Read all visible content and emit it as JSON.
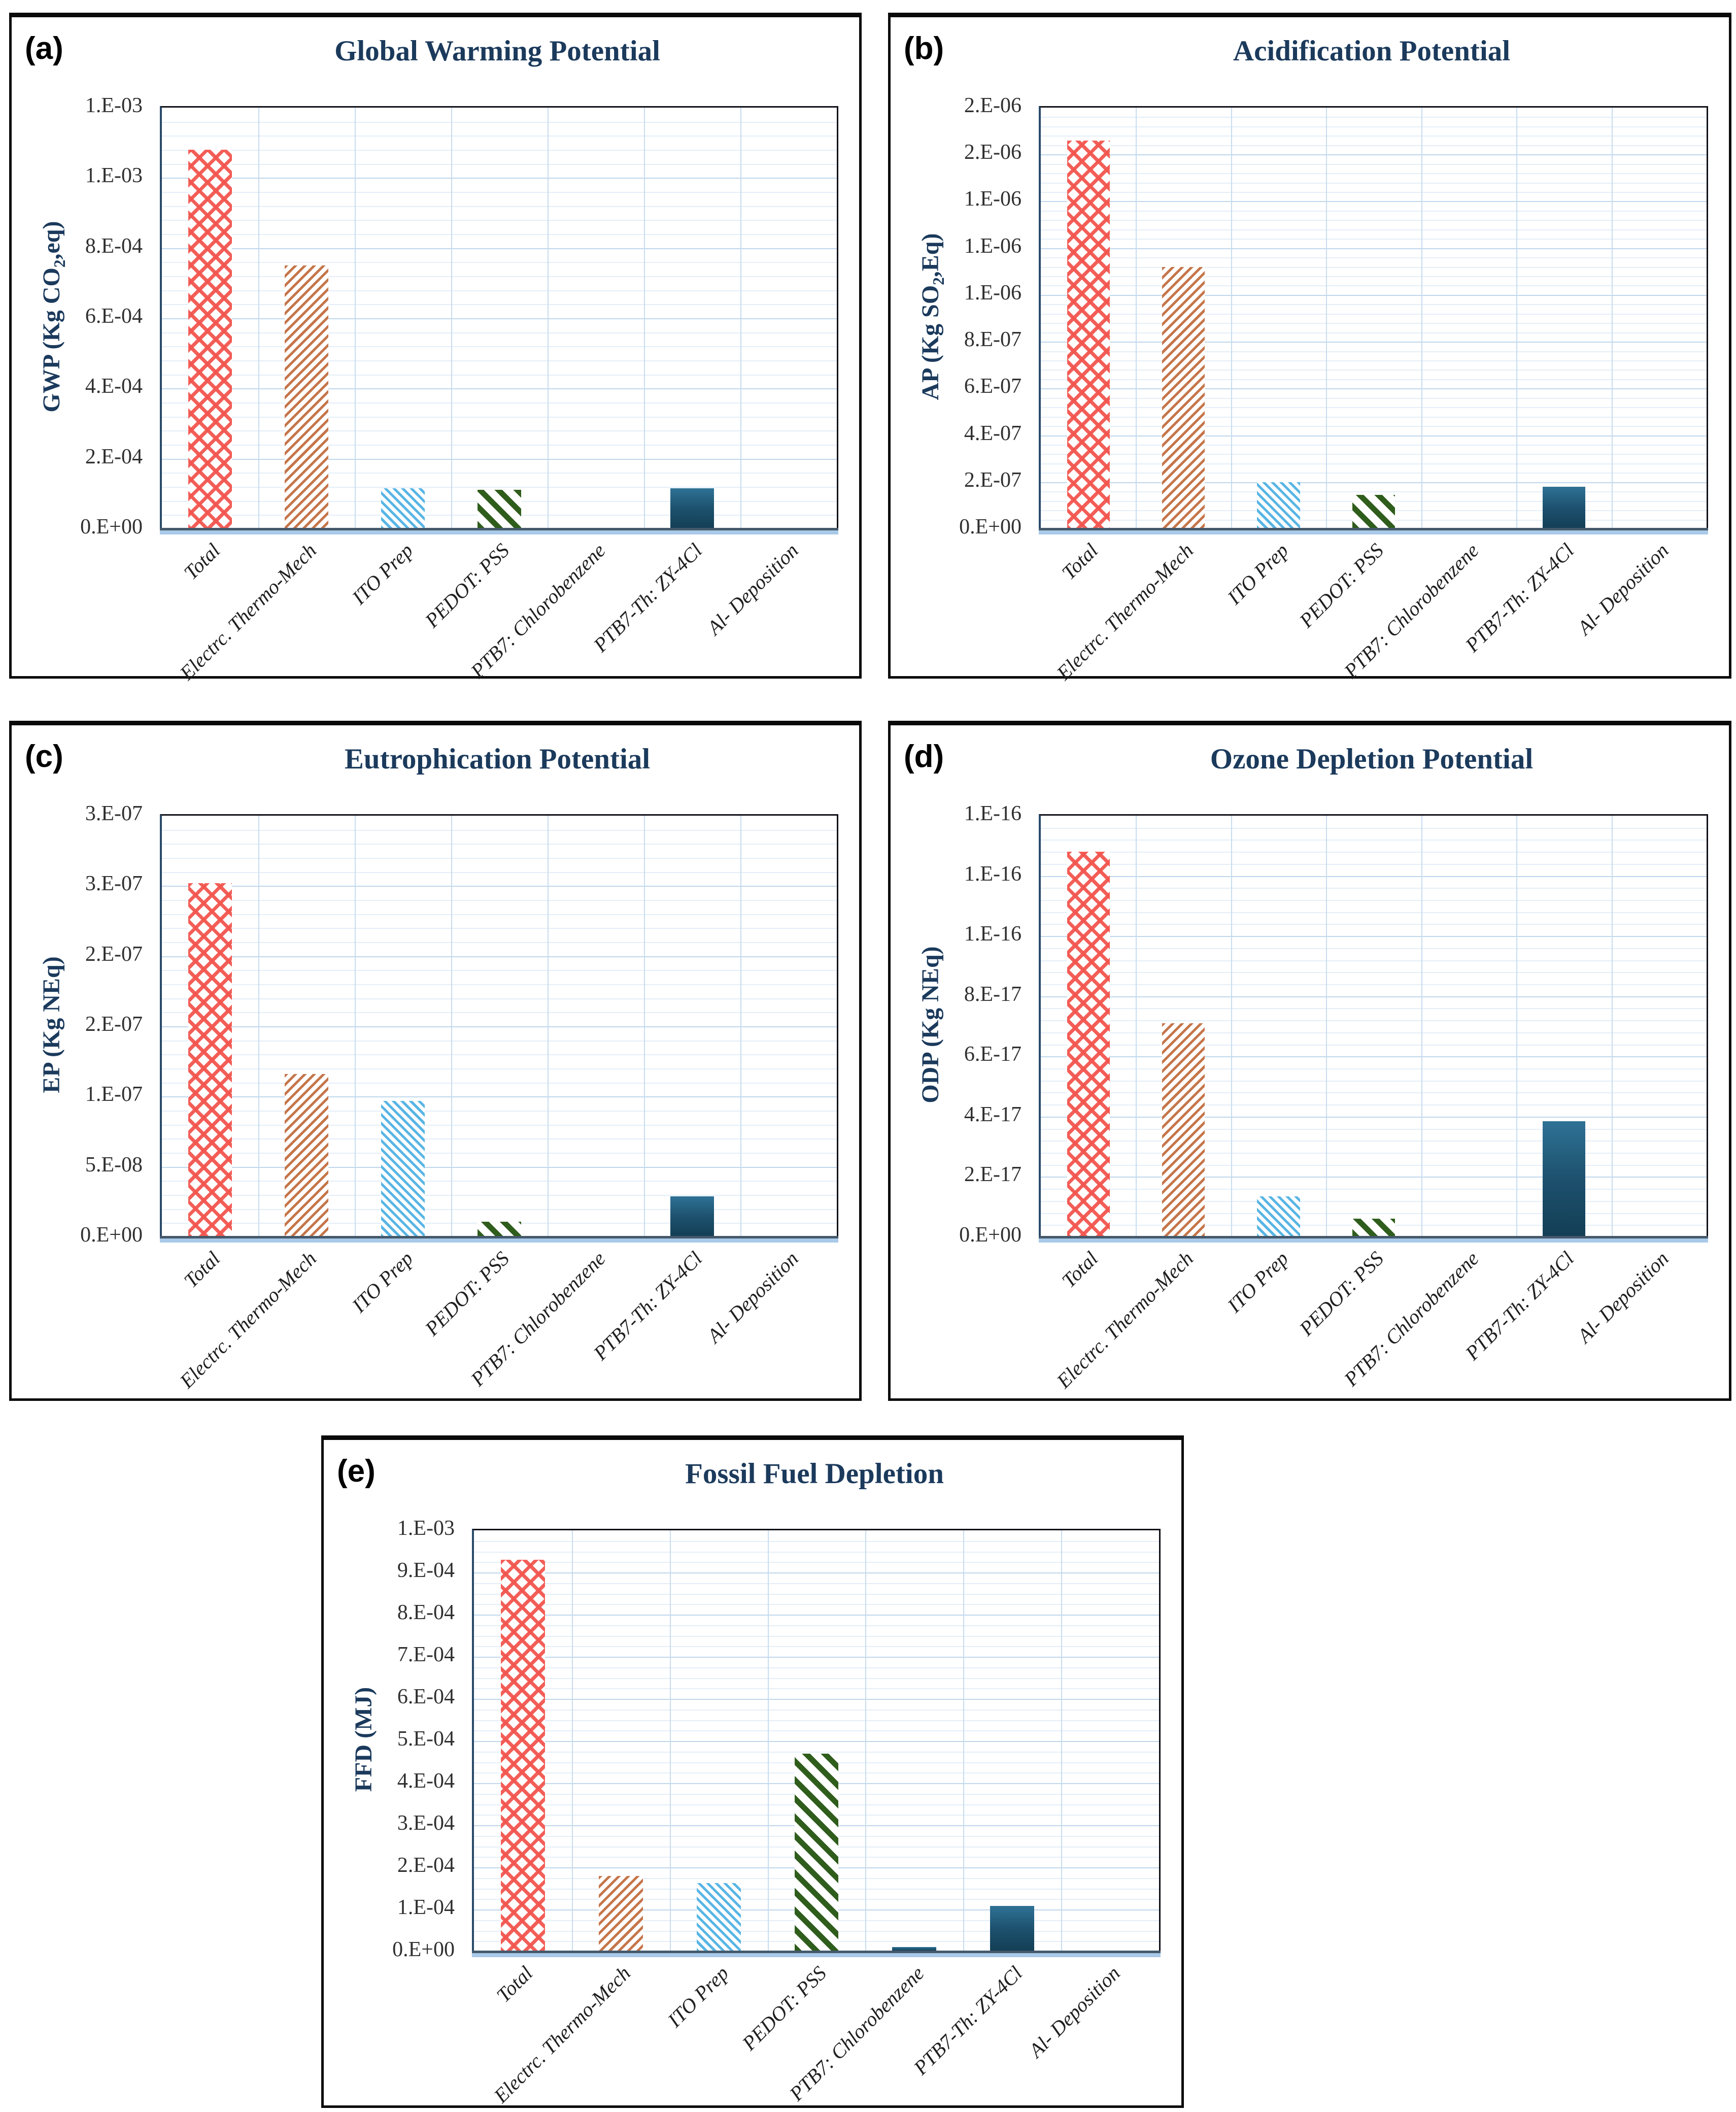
{
  "figure": {
    "background": "#ffffff",
    "palette": {
      "title_navy": "#1B3A5C",
      "tick_text": "#303030",
      "category_text": "#1F1F1F",
      "grid_major": "#BFD7EC",
      "grid_minor": "#E4EEF8",
      "grid_vertical": "#C7DCEF",
      "axis_line": "#44596B",
      "axis_band": "#A9C9E8",
      "plot_border": "#101018",
      "red_crosshatch": "#F2564F",
      "orange_hatch": "#C5754A",
      "blue_hatch": "#58B5E5",
      "green_stripe": "#2F5D1C",
      "teal_solid_top": "#2F7295",
      "teal_solid_bottom": "#133E55"
    }
  },
  "categories": [
    "Total",
    "Electrc. Thermo-Mech",
    "ITO Prep",
    "PEDOT: PSS",
    "PTB7: Chlorobenzene",
    "PTB7-Th: ZY-4Cl",
    "Al- Deposition"
  ],
  "category_bar_patterns": [
    "red-crosshatch",
    "orange-diagonal-hatch",
    "blue-diagonal-hatch",
    "green-diagonal-stripe",
    "teal-solid",
    "teal-solid",
    "teal-solid"
  ],
  "chart_data": [
    {
      "type": "bar",
      "panel_label": "(a)",
      "title": "Global Warming Potential",
      "ylabel": "GWP (Kg CO₂,eq)",
      "ylabel_parts": {
        "pre": "GWP (Kg CO",
        "sub": "2",
        "post": ",eq)"
      },
      "xlabel": "",
      "categories": [
        "Total",
        "Electrc. Thermo-Mech",
        "ITO Prep",
        "PEDOT: PSS",
        "PTB7: Chlorobenzene",
        "PTB7-Th: ZY-4Cl",
        "Al- Deposition"
      ],
      "values": [
        0.00108,
        0.00075,
        0.000116,
        0.000112,
        0,
        0.000115,
        0
      ],
      "ylim": [
        0,
        0.0012
      ],
      "ytick_step": 0.0002,
      "ytick_labels": [
        "0.E+00",
        "2.E-04",
        "4.E-04",
        "6.E-04",
        "8.E-04",
        "1.E-03",
        "1.E-03"
      ],
      "minor_divisions": 5,
      "grid": true,
      "legend": "none"
    },
    {
      "type": "bar",
      "panel_label": "(b)",
      "title": "Acidification Potential",
      "ylabel": "AP (Kg SO₂,Eq)",
      "ylabel_parts": {
        "pre": "AP (Kg SO",
        "sub": "2",
        "post": ",Eq)"
      },
      "xlabel": "",
      "categories": [
        "Total",
        "Electrc. Thermo-Mech",
        "ITO Prep",
        "PEDOT: PSS",
        "PTB7: Chlorobenzene",
        "PTB7-Th: ZY-4Cl",
        "Al- Deposition"
      ],
      "values": [
        1.66e-06,
        1.12e-06,
        2e-07,
        1.45e-07,
        0,
        1.8e-07,
        0
      ],
      "ylim": [
        0,
        1.8e-06
      ],
      "ytick_step": 2e-07,
      "ytick_labels": [
        "0.E+00",
        "2.E-07",
        "4.E-07",
        "6.E-07",
        "8.E-07",
        "1.E-06",
        "1.E-06",
        "1.E-06",
        "2.E-06",
        "2.E-06"
      ],
      "minor_divisions": 5,
      "grid": true,
      "legend": "none"
    },
    {
      "type": "bar",
      "panel_label": "(c)",
      "title": "Eutrophication Potential",
      "ylabel": "EP (Kg NEq)",
      "ylabel_parts": {
        "pre": "EP (Kg NEq)",
        "sub": "",
        "post": ""
      },
      "xlabel": "",
      "categories": [
        "Total",
        "Electrc. Thermo-Mech",
        "ITO Prep",
        "PEDOT: PSS",
        "PTB7: Chlorobenzene",
        "PTB7-Th: ZY-4Cl",
        "Al- Deposition"
      ],
      "values": [
        2.52e-07,
        1.16e-07,
        9.7e-08,
        1.1e-08,
        0,
        2.9e-08,
        0
      ],
      "ylim": [
        0,
        3e-07
      ],
      "ytick_step": 5e-08,
      "ytick_labels": [
        "0.E+00",
        "5.E-08",
        "1.E-07",
        "2.E-07",
        "2.E-07",
        "3.E-07",
        "3.E-07"
      ],
      "minor_divisions": 5,
      "grid": true,
      "legend": "none"
    },
    {
      "type": "bar",
      "panel_label": "(d)",
      "title": "Ozone Depletion Potential",
      "ylabel": "ODP (Kg NEq)",
      "ylabel_parts": {
        "pre": "ODP (Kg NEq)",
        "sub": "",
        "post": ""
      },
      "xlabel": "",
      "categories": [
        "Total",
        "Electrc. Thermo-Mech",
        "ITO Prep",
        "PEDOT: PSS",
        "PTB7: Chlorobenzene",
        "PTB7-Th: ZY-4Cl",
        "Al- Deposition"
      ],
      "values": [
        1.28e-16,
        7.1e-17,
        1.35e-17,
        6e-18,
        0,
        3.85e-17,
        0
      ],
      "ylim": [
        0,
        1.4e-16
      ],
      "ytick_step": 2e-17,
      "ytick_labels": [
        "0.E+00",
        "2.E-17",
        "4.E-17",
        "6.E-17",
        "8.E-17",
        "1.E-16",
        "1.E-16",
        "1.E-16"
      ],
      "minor_divisions": 5,
      "grid": true,
      "legend": "none"
    },
    {
      "type": "bar",
      "panel_label": "(e)",
      "title": "Fossil Fuel Depletion",
      "ylabel": "FFD (MJ)",
      "ylabel_parts": {
        "pre": "FFD (MJ)",
        "sub": "",
        "post": ""
      },
      "xlabel": "",
      "categories": [
        "Total",
        "Electrc. Thermo-Mech",
        "ITO Prep",
        "PEDOT: PSS",
        "PTB7: Chlorobenzene",
        "PTB7-Th: ZY-4Cl",
        "Al- Deposition"
      ],
      "values": [
        0.00093,
        0.00018,
        0.000163,
        0.00047,
        1.1e-05,
        0.000108,
        0
      ],
      "ylim": [
        0,
        0.001
      ],
      "ytick_step": 0.0001,
      "ytick_labels": [
        "0.E+00",
        "1.E-04",
        "2.E-04",
        "3.E-04",
        "4.E-04",
        "5.E-04",
        "6.E-04",
        "7.E-04",
        "8.E-04",
        "9.E-04",
        "1.E-03"
      ],
      "minor_divisions": 4,
      "grid": true,
      "legend": "none"
    }
  ]
}
